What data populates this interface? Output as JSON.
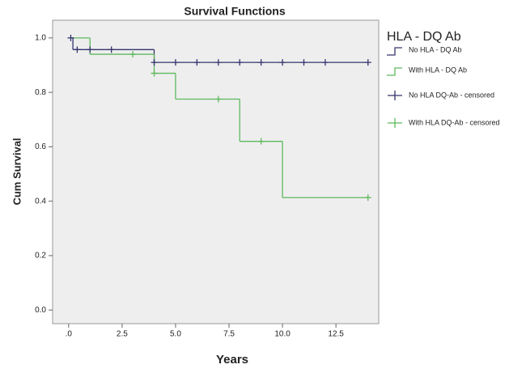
{
  "chart_data": {
    "type": "survival",
    "title": "Survival Functions",
    "x_label": "Years",
    "y_label": "Cum Survival",
    "legend_title": "HLA - DQ Ab",
    "xlim": [
      -0.75,
      14.5
    ],
    "xticks": [
      {
        "value": 0,
        "label": ".0"
      },
      2.5,
      {
        "value": 5,
        "label": "5.0"
      },
      7.5,
      {
        "value": 10,
        "label": "10.0"
      },
      12.5
    ],
    "ylim": [
      -0.05,
      1.065
    ],
    "yticks": [
      {
        "value": 0,
        "label": "0.0"
      },
      0.2,
      0.4,
      0.6,
      0.8,
      {
        "value": 1,
        "label": "1.0"
      }
    ],
    "series": [
      {
        "name": "No HLA - DQ Ab",
        "color": "#34346e",
        "x": [
          0,
          0.2,
          4,
          14
        ],
        "values": [
          1,
          0.957,
          0.91,
          0.91
        ]
      },
      {
        "name": "With HLA - DQ Ab",
        "color": "#5cb85c",
        "x": [
          0,
          1,
          4,
          5,
          8,
          10,
          14
        ],
        "values": [
          1,
          0.94,
          0.87,
          0.775,
          0.62,
          0.413,
          0.413
        ]
      }
    ],
    "censored": [
      {
        "name": "No HLA DQ-Ab - censored",
        "color": "#34346e",
        "x": [
          0.1,
          0.4,
          1,
          2,
          4,
          5,
          6,
          7,
          8,
          9,
          10,
          11,
          12,
          14
        ],
        "values": [
          1,
          0.957,
          0.957,
          0.957,
          0.91,
          0.91,
          0.91,
          0.91,
          0.91,
          0.91,
          0.91,
          0.91,
          0.91,
          0.91
        ]
      },
      {
        "name": "With HLA DQ-Ab - censored",
        "color": "#5cb85c",
        "x": [
          3,
          4,
          7,
          9,
          14
        ],
        "values": [
          0.94,
          0.87,
          0.775,
          0.62,
          0.413
        ]
      }
    ]
  }
}
